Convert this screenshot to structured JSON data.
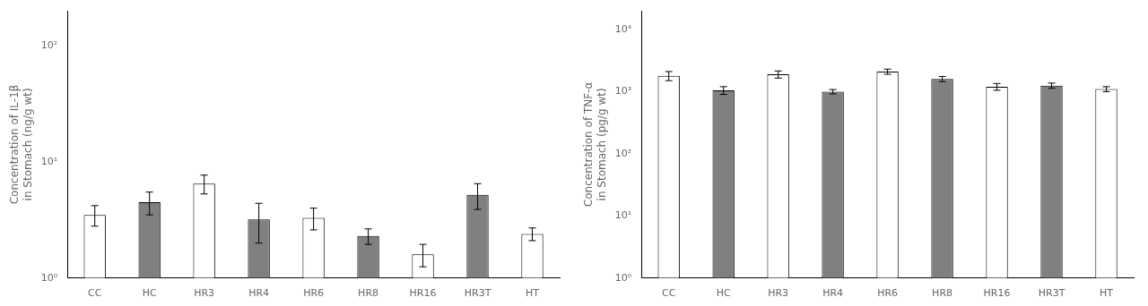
{
  "chart_data": [
    {
      "type": "bar",
      "categories": [
        "CC",
        "HC",
        "HR3",
        "HR4",
        "HR6",
        "HR8",
        "HR16",
        "HR3T",
        "HT"
      ],
      "values": [
        3.5,
        4.5,
        6.5,
        3.2,
        3.3,
        2.3,
        1.6,
        5.2,
        2.4
      ],
      "errors": [
        0.7,
        1.0,
        1.2,
        1.2,
        0.7,
        0.35,
        0.35,
        1.3,
        0.3
      ],
      "colors": [
        "white",
        "#808080",
        "white",
        "#808080",
        "white",
        "#808080",
        "white",
        "#808080",
        "white"
      ],
      "ylabel": "Concentration of IL-1β\nin Stomach (ng/g wt)",
      "log": "y",
      "ylim": [
        1.0,
        200
      ],
      "yticks": [
        {
          "value": 1,
          "label": "10⁰"
        },
        {
          "value": 10,
          "label": "10¹"
        },
        {
          "value": 100,
          "label": "10²"
        }
      ],
      "grid": false
    },
    {
      "type": "bar",
      "categories": [
        "CC",
        "HC",
        "HR3",
        "HR4",
        "HR6",
        "HR8",
        "HR16",
        "HR3T",
        "HT"
      ],
      "values": [
        1800,
        1050,
        1900,
        1000,
        2100,
        1600,
        1200,
        1250,
        1100
      ],
      "errors": [
        300,
        150,
        250,
        80,
        200,
        150,
        150,
        120,
        100
      ],
      "colors": [
        "white",
        "#808080",
        "white",
        "#808080",
        "white",
        "#808080",
        "white",
        "#808080",
        "white"
      ],
      "ylabel": "Concentration of TNF-α\nin Stomach (pg/g wt)",
      "log": "y",
      "ylim": [
        1.0,
        20000
      ],
      "yticks": [
        {
          "value": 1,
          "label": "10⁰"
        },
        {
          "value": 10,
          "label": "10¹"
        },
        {
          "value": 100,
          "label": "10²"
        },
        {
          "value": 1000,
          "label": "10³"
        },
        {
          "value": 10000,
          "label": "10⁴"
        }
      ],
      "grid": false
    }
  ]
}
